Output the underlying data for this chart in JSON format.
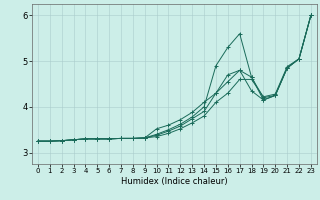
{
  "title": "",
  "xlabel": "Humidex (Indice chaleur)",
  "xlim": [
    -0.5,
    23.5
  ],
  "ylim": [
    2.75,
    6.25
  ],
  "xticks": [
    0,
    1,
    2,
    3,
    4,
    5,
    6,
    7,
    8,
    9,
    10,
    11,
    12,
    13,
    14,
    15,
    16,
    17,
    18,
    19,
    20,
    21,
    22,
    23
  ],
  "yticks": [
    3,
    4,
    5,
    6
  ],
  "background_color": "#cceee8",
  "grid_color": "#aacccc",
  "line_color": "#1a6b5a",
  "lines": [
    [
      3.25,
      3.25,
      3.26,
      3.28,
      3.3,
      3.3,
      3.3,
      3.31,
      3.31,
      3.32,
      3.52,
      3.6,
      3.72,
      3.88,
      4.1,
      4.3,
      4.55,
      4.8,
      4.65,
      4.2,
      4.25,
      4.85,
      5.05,
      6.0
    ],
    [
      3.25,
      3.25,
      3.26,
      3.28,
      3.3,
      3.3,
      3.3,
      3.31,
      3.31,
      3.32,
      3.4,
      3.5,
      3.62,
      3.78,
      4.0,
      4.9,
      5.3,
      5.6,
      4.65,
      4.15,
      4.25,
      4.85,
      5.05,
      6.0
    ],
    [
      3.25,
      3.25,
      3.26,
      3.28,
      3.3,
      3.3,
      3.3,
      3.31,
      3.31,
      3.32,
      3.38,
      3.47,
      3.58,
      3.74,
      3.9,
      4.3,
      4.7,
      4.8,
      4.35,
      4.15,
      4.25,
      4.85,
      5.05,
      6.0
    ],
    [
      3.25,
      3.25,
      3.26,
      3.28,
      3.3,
      3.3,
      3.3,
      3.31,
      3.31,
      3.32,
      3.35,
      3.42,
      3.52,
      3.65,
      3.8,
      4.1,
      4.3,
      4.6,
      4.6,
      4.22,
      4.28,
      4.88,
      5.05,
      6.0
    ]
  ]
}
